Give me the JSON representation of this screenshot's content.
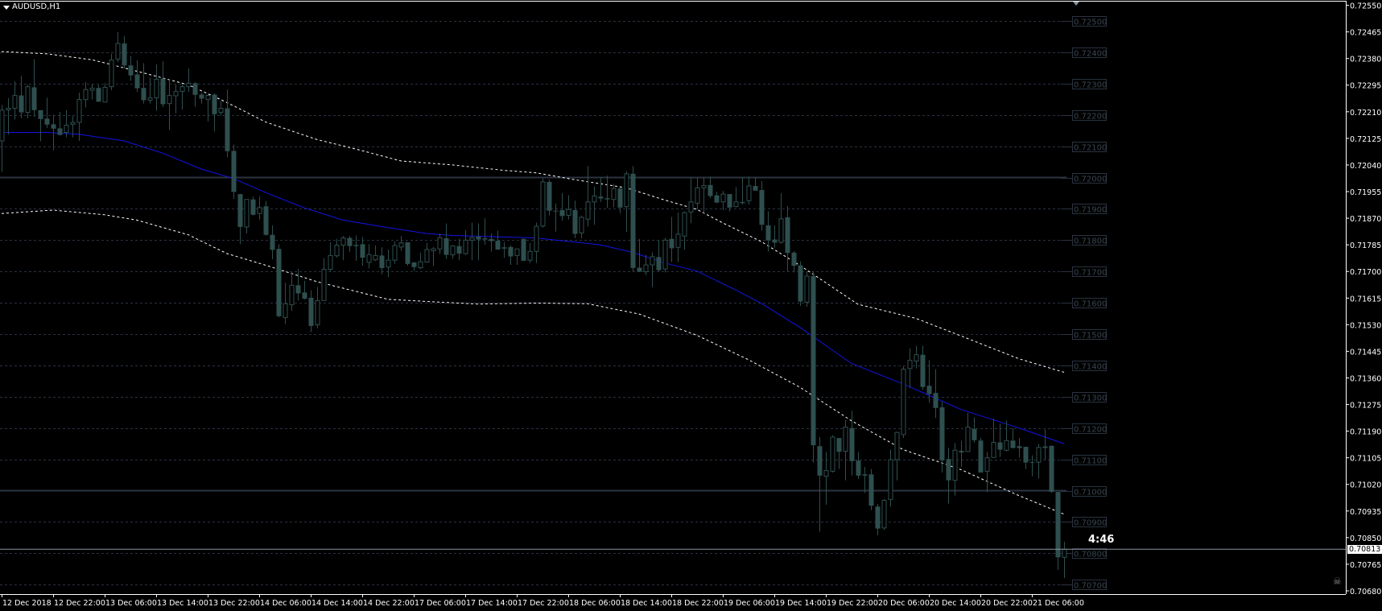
{
  "window": {
    "title": "AUDUSD,H1",
    "countdown": "4:46",
    "bid_label": "0.70813"
  },
  "icons": {
    "title_menu": "triangle-down-icon",
    "autoscroll": "triangle-down-icon",
    "skull": "skull-icon"
  },
  "colors": {
    "background": "#000000",
    "candle": "#2f4f4f",
    "moving_average": "#1414e6",
    "bands": "#ffffff",
    "grid": "#2a3340",
    "level_line": "#2a3440",
    "bid_line": "#8a94a0",
    "axis_text": "#ffffff",
    "level_label": "#3a4550"
  },
  "chart_data": {
    "type": "candlestick",
    "symbol": "AUDUSD",
    "timeframe": "H1",
    "ylim": [
      0.7068,
      0.7255
    ],
    "grid": true,
    "price_axis_labels": [
      "0.72550",
      "0.72465",
      "0.72380",
      "0.72295",
      "0.72210",
      "0.72125",
      "0.72040",
      "0.71955",
      "0.71870",
      "0.71785",
      "0.71700",
      "0.71615",
      "0.71530",
      "0.71445",
      "0.71360",
      "0.71275",
      "0.71190",
      "0.71105",
      "0.71020",
      "0.70935",
      "0.70850",
      "0.70765",
      "0.70680"
    ],
    "grid_level_labels": [
      "0.72500",
      "0.72400",
      "0.72300",
      "0.72200",
      "0.72100",
      "0.72000",
      "0.71900",
      "0.71800",
      "0.71700",
      "0.71600",
      "0.71500",
      "0.71400",
      "0.71300",
      "0.71200",
      "0.71100",
      "0.71000",
      "0.70900",
      "0.70800",
      "0.70700"
    ],
    "horizontal_levels": [
      0.72,
      0.71
    ],
    "bid": 0.70813,
    "time_axis_labels": [
      "12 Dec 2018",
      "12 Dec 22:00",
      "13 Dec 06:00",
      "13 Dec 14:00",
      "13 Dec 22:00",
      "14 Dec 06:00",
      "14 Dec 14:00",
      "14 Dec 22:00",
      "17 Dec 06:00",
      "17 Dec 14:00",
      "17 Dec 22:00",
      "18 Dec 06:00",
      "18 Dec 14:00",
      "18 Dec 22:00",
      "19 Dec 06:00",
      "19 Dec 14:00",
      "19 Dec 22:00",
      "20 Dec 06:00",
      "20 Dec 14:00",
      "20 Dec 22:00",
      "21 Dec 06:00"
    ],
    "bars_per_time_label": 8,
    "ohlc": [
      [
        0.72117,
        0.72232,
        0.72018,
        0.72215
      ],
      [
        0.72216,
        0.72254,
        0.72138,
        0.72221
      ],
      [
        0.72221,
        0.72307,
        0.72185,
        0.72262
      ],
      [
        0.72262,
        0.72325,
        0.72189,
        0.72208
      ],
      [
        0.72208,
        0.72296,
        0.72189,
        0.7229
      ],
      [
        0.72288,
        0.72378,
        0.72194,
        0.72215
      ],
      [
        0.72215,
        0.72215,
        0.72115,
        0.72187
      ],
      [
        0.72188,
        0.72255,
        0.72159,
        0.72169
      ],
      [
        0.7217,
        0.722,
        0.72087,
        0.72156
      ],
      [
        0.72157,
        0.72209,
        0.72134,
        0.72136
      ],
      [
        0.72144,
        0.72215,
        0.72129,
        0.72167
      ],
      [
        0.7217,
        0.72196,
        0.72128,
        0.72176
      ],
      [
        0.72176,
        0.72271,
        0.72117,
        0.72249
      ],
      [
        0.72249,
        0.72305,
        0.72224,
        0.72281
      ],
      [
        0.72279,
        0.72298,
        0.72249,
        0.72285
      ],
      [
        0.72286,
        0.72296,
        0.72242,
        0.72242
      ],
      [
        0.72241,
        0.72301,
        0.72241,
        0.72288
      ],
      [
        0.7229,
        0.72395,
        0.72279,
        0.72375
      ],
      [
        0.72378,
        0.72464,
        0.72369,
        0.72428
      ],
      [
        0.72428,
        0.72451,
        0.72348,
        0.72358
      ],
      [
        0.72358,
        0.72388,
        0.72309,
        0.72326
      ],
      [
        0.72329,
        0.72374,
        0.72273,
        0.72285
      ],
      [
        0.72286,
        0.72365,
        0.72236,
        0.72247
      ],
      [
        0.72247,
        0.72318,
        0.72236,
        0.72254
      ],
      [
        0.72254,
        0.72361,
        0.72213,
        0.72314
      ],
      [
        0.72316,
        0.72371,
        0.72225,
        0.72234
      ],
      [
        0.72236,
        0.72314,
        0.72151,
        0.72262
      ],
      [
        0.72261,
        0.72296,
        0.72205,
        0.72275
      ],
      [
        0.72275,
        0.72299,
        0.72217,
        0.7229
      ],
      [
        0.7229,
        0.72348,
        0.72273,
        0.72301
      ],
      [
        0.72301,
        0.72305,
        0.72226,
        0.72264
      ],
      [
        0.72265,
        0.72271,
        0.72236,
        0.72252
      ],
      [
        0.72249,
        0.72266,
        0.72179,
        0.72262
      ],
      [
        0.72265,
        0.72268,
        0.72147,
        0.72202
      ],
      [
        0.72208,
        0.72245,
        0.72198,
        0.72221
      ],
      [
        0.72221,
        0.72281,
        0.72065,
        0.72084
      ],
      [
        0.72085,
        0.72105,
        0.71932,
        0.71954
      ],
      [
        0.71947,
        0.71947,
        0.71787,
        0.71842
      ],
      [
        0.71842,
        0.7193,
        0.71821,
        0.7193
      ],
      [
        0.7193,
        0.71939,
        0.71879,
        0.71881
      ],
      [
        0.71885,
        0.71939,
        0.71866,
        0.71904
      ],
      [
        0.71908,
        0.71925,
        0.71814,
        0.71817
      ],
      [
        0.71817,
        0.71847,
        0.71739,
        0.71769
      ],
      [
        0.71772,
        0.71787,
        0.71554,
        0.71557
      ],
      [
        0.71553,
        0.71664,
        0.71532,
        0.71597
      ],
      [
        0.71594,
        0.71699,
        0.71574,
        0.71656
      ],
      [
        0.71656,
        0.71708,
        0.71607,
        0.7163
      ],
      [
        0.71633,
        0.7167,
        0.7161,
        0.71613
      ],
      [
        0.71616,
        0.7164,
        0.71506,
        0.71526
      ],
      [
        0.7153,
        0.7165,
        0.71519,
        0.71607
      ],
      [
        0.71607,
        0.71742,
        0.71607,
        0.71707
      ],
      [
        0.71707,
        0.71793,
        0.71699,
        0.71751
      ],
      [
        0.7175,
        0.71804,
        0.71744,
        0.71784
      ],
      [
        0.71784,
        0.71813,
        0.71736,
        0.71807
      ],
      [
        0.71807,
        0.71813,
        0.71763,
        0.71781
      ],
      [
        0.71785,
        0.71815,
        0.71734,
        0.71781
      ],
      [
        0.71787,
        0.7181,
        0.71718,
        0.71744
      ],
      [
        0.71729,
        0.71787,
        0.7171,
        0.71754
      ],
      [
        0.71737,
        0.71783,
        0.71733,
        0.71751
      ],
      [
        0.71751,
        0.71777,
        0.71691,
        0.71711
      ],
      [
        0.71714,
        0.7177,
        0.71682,
        0.71736
      ],
      [
        0.71736,
        0.71796,
        0.71724,
        0.71783
      ],
      [
        0.71778,
        0.71813,
        0.71766,
        0.71791
      ],
      [
        0.71793,
        0.71793,
        0.71718,
        0.71724
      ],
      [
        0.71729,
        0.7173,
        0.71701,
        0.71714
      ],
      [
        0.71712,
        0.7176,
        0.71707,
        0.71731
      ],
      [
        0.7173,
        0.71791,
        0.7173,
        0.7177
      ],
      [
        0.71766,
        0.71778,
        0.71717,
        0.71772
      ],
      [
        0.71772,
        0.71821,
        0.71755,
        0.71808
      ],
      [
        0.71806,
        0.71853,
        0.7174,
        0.71753
      ],
      [
        0.71753,
        0.71783,
        0.7174,
        0.71782
      ],
      [
        0.71781,
        0.71804,
        0.71736,
        0.71757
      ],
      [
        0.71757,
        0.71831,
        0.71753,
        0.718
      ],
      [
        0.718,
        0.71856,
        0.71736,
        0.71808
      ],
      [
        0.71811,
        0.71853,
        0.71736,
        0.71802
      ],
      [
        0.71806,
        0.7187,
        0.71785,
        0.71802
      ],
      [
        0.71804,
        0.71821,
        0.71763,
        0.71797
      ],
      [
        0.71798,
        0.7183,
        0.7177,
        0.7177
      ],
      [
        0.71777,
        0.71794,
        0.71744,
        0.71773
      ],
      [
        0.71778,
        0.71783,
        0.71721,
        0.71748
      ],
      [
        0.71751,
        0.71772,
        0.71721,
        0.71772
      ],
      [
        0.71804,
        0.71804,
        0.71734,
        0.71734
      ],
      [
        0.71736,
        0.71791,
        0.71727,
        0.71764
      ],
      [
        0.71764,
        0.71856,
        0.71727,
        0.71844
      ],
      [
        0.71845,
        0.71997,
        0.7184,
        0.71986
      ],
      [
        0.71986,
        0.71994,
        0.71879,
        0.71894
      ],
      [
        0.71894,
        0.71917,
        0.71827,
        0.71892
      ],
      [
        0.71896,
        0.7195,
        0.71862,
        0.71877
      ],
      [
        0.71879,
        0.71943,
        0.71866,
        0.71898
      ],
      [
        0.71896,
        0.71926,
        0.71806,
        0.7182
      ],
      [
        0.71823,
        0.71879,
        0.71806,
        0.71873
      ],
      [
        0.71867,
        0.72036,
        0.71843,
        0.71922
      ],
      [
        0.71922,
        0.71971,
        0.71849,
        0.71941
      ],
      [
        0.71939,
        0.72001,
        0.71922,
        0.71933
      ],
      [
        0.71934,
        0.72006,
        0.71903,
        0.7193
      ],
      [
        0.7193,
        0.7198,
        0.71905,
        0.71965
      ],
      [
        0.71965,
        0.71969,
        0.71886,
        0.71904
      ],
      [
        0.71907,
        0.7202,
        0.71826,
        0.72012
      ],
      [
        0.72012,
        0.72036,
        0.71699,
        0.71711
      ],
      [
        0.71712,
        0.71804,
        0.71699,
        0.71699
      ],
      [
        0.71699,
        0.71753,
        0.71688,
        0.71721
      ],
      [
        0.71721,
        0.71761,
        0.7165,
        0.71747
      ],
      [
        0.71746,
        0.718,
        0.71699,
        0.71704
      ],
      [
        0.71708,
        0.71808,
        0.71697,
        0.718
      ],
      [
        0.71804,
        0.71874,
        0.7173,
        0.71774
      ],
      [
        0.71777,
        0.71888,
        0.7173,
        0.71819
      ],
      [
        0.71813,
        0.71892,
        0.7177,
        0.71888
      ],
      [
        0.7189,
        0.72001,
        0.71854,
        0.71922
      ],
      [
        0.71918,
        0.72,
        0.719,
        0.71967
      ],
      [
        0.71967,
        0.72001,
        0.71886,
        0.71974
      ],
      [
        0.71976,
        0.72003,
        0.71934,
        0.71941
      ],
      [
        0.71943,
        0.71954,
        0.71918,
        0.7192
      ],
      [
        0.71922,
        0.71957,
        0.71896,
        0.71947
      ],
      [
        0.71947,
        0.71947,
        0.71892,
        0.71904
      ],
      [
        0.71907,
        0.71969,
        0.71905,
        0.71922
      ],
      [
        0.71922,
        0.72001,
        0.71914,
        0.71918
      ],
      [
        0.71926,
        0.72003,
        0.71914,
        0.71973
      ],
      [
        0.71973,
        0.72001,
        0.71958,
        0.71958
      ],
      [
        0.7196,
        0.71988,
        0.7183,
        0.71849
      ],
      [
        0.71847,
        0.71892,
        0.71764,
        0.71799
      ],
      [
        0.71802,
        0.71847,
        0.71776,
        0.71792
      ],
      [
        0.71793,
        0.7195,
        0.71789,
        0.71868
      ],
      [
        0.71873,
        0.71909,
        0.71701,
        0.71759
      ],
      [
        0.7176,
        0.71765,
        0.71697,
        0.71718
      ],
      [
        0.71719,
        0.71732,
        0.7159,
        0.71604
      ],
      [
        0.71602,
        0.717,
        0.71587,
        0.71685
      ],
      [
        0.71685,
        0.717,
        0.7109,
        0.71145
      ],
      [
        0.71142,
        0.71171,
        0.70869,
        0.71048
      ],
      [
        0.71046,
        0.71124,
        0.70955,
        0.71064
      ],
      [
        0.71062,
        0.71177,
        0.71058,
        0.71171
      ],
      [
        0.71168,
        0.71168,
        0.71069,
        0.71124
      ],
      [
        0.71126,
        0.71227,
        0.71033,
        0.71203
      ],
      [
        0.712,
        0.71255,
        0.71048,
        0.71094
      ],
      [
        0.71096,
        0.71124,
        0.71037,
        0.71048
      ],
      [
        0.71052,
        0.71076,
        0.70993,
        0.71048
      ],
      [
        0.71052,
        0.71069,
        0.70938,
        0.70952
      ],
      [
        0.70949,
        0.70957,
        0.70858,
        0.70879
      ],
      [
        0.70881,
        0.70973,
        0.70874,
        0.70969
      ],
      [
        0.70972,
        0.71131,
        0.70949,
        0.71099
      ],
      [
        0.71099,
        0.71188,
        0.71033,
        0.71186
      ],
      [
        0.71179,
        0.71397,
        0.71168,
        0.71388
      ],
      [
        0.7139,
        0.71454,
        0.71328,
        0.71416
      ],
      [
        0.71414,
        0.71462,
        0.7139,
        0.71434
      ],
      [
        0.71434,
        0.71462,
        0.71322,
        0.71331
      ],
      [
        0.71335,
        0.71417,
        0.71281,
        0.71308
      ],
      [
        0.71312,
        0.71388,
        0.71232,
        0.71264
      ],
      [
        0.71266,
        0.71284,
        0.71058,
        0.71097
      ],
      [
        0.71101,
        0.71137,
        0.70959,
        0.71033
      ],
      [
        0.71033,
        0.71152,
        0.70984,
        0.71129
      ],
      [
        0.71125,
        0.71159,
        0.71076,
        0.71126
      ],
      [
        0.71125,
        0.71248,
        0.71125,
        0.71203
      ],
      [
        0.71197,
        0.71234,
        0.71154,
        0.71161
      ],
      [
        0.7116,
        0.71169,
        0.71058,
        0.71058
      ],
      [
        0.71062,
        0.71124,
        0.70995,
        0.71105
      ],
      [
        0.71106,
        0.7123,
        0.71106,
        0.71154
      ],
      [
        0.71154,
        0.71214,
        0.71108,
        0.71131
      ],
      [
        0.71129,
        0.71224,
        0.71125,
        0.7116
      ],
      [
        0.7116,
        0.712,
        0.71136,
        0.71136
      ],
      [
        0.71142,
        0.71168,
        0.71105,
        0.71136
      ],
      [
        0.7114,
        0.7114,
        0.71069,
        0.7109
      ],
      [
        0.71091,
        0.71113,
        0.71046,
        0.7109
      ],
      [
        0.71091,
        0.71149,
        0.71039,
        0.71138
      ],
      [
        0.71138,
        0.71195,
        0.71099,
        0.7114
      ],
      [
        0.71143,
        0.71145,
        0.70993,
        0.70996
      ],
      [
        0.70996,
        0.70996,
        0.70747,
        0.70787
      ],
      [
        0.70787,
        0.70837,
        0.70721,
        0.70813
      ]
    ],
    "moving_average": [
      [
        0,
        0.72144
      ],
      [
        7,
        0.72144
      ],
      [
        12,
        0.72138
      ],
      [
        19,
        0.72117
      ],
      [
        25,
        0.72078
      ],
      [
        31,
        0.72027
      ],
      [
        36,
        0.71997
      ],
      [
        41,
        0.71952
      ],
      [
        47,
        0.71903
      ],
      [
        53,
        0.71864
      ],
      [
        60,
        0.7184
      ],
      [
        66,
        0.71821
      ],
      [
        70,
        0.71815
      ],
      [
        78,
        0.7181
      ],
      [
        83,
        0.71807
      ],
      [
        93,
        0.71785
      ],
      [
        98,
        0.71761
      ],
      [
        103,
        0.71727
      ],
      [
        108,
        0.71701
      ],
      [
        114,
        0.71641
      ],
      [
        118,
        0.71598
      ],
      [
        124,
        0.71521
      ],
      [
        132,
        0.71406
      ],
      [
        140,
        0.71341
      ],
      [
        149,
        0.71259
      ],
      [
        158,
        0.712
      ],
      [
        165,
        0.7115
      ]
    ],
    "upper_band": [
      [
        0,
        0.72402
      ],
      [
        7,
        0.72395
      ],
      [
        14,
        0.72376
      ],
      [
        17,
        0.72361
      ],
      [
        25,
        0.72318
      ],
      [
        29,
        0.72296
      ],
      [
        34,
        0.72249
      ],
      [
        37,
        0.72219
      ],
      [
        41,
        0.72177
      ],
      [
        49,
        0.72121
      ],
      [
        55,
        0.72091
      ],
      [
        62,
        0.72053
      ],
      [
        70,
        0.7204
      ],
      [
        78,
        0.72023
      ],
      [
        83,
        0.72015
      ],
      [
        89,
        0.71993
      ],
      [
        97,
        0.71967
      ],
      [
        103,
        0.71928
      ],
      [
        108,
        0.71898
      ],
      [
        112,
        0.71855
      ],
      [
        118,
        0.71795
      ],
      [
        124,
        0.71719
      ],
      [
        133,
        0.71595
      ],
      [
        142,
        0.7155
      ],
      [
        149,
        0.71494
      ],
      [
        158,
        0.71421
      ],
      [
        165,
        0.71378
      ]
    ],
    "lower_band": [
      [
        0,
        0.71885
      ],
      [
        8,
        0.71896
      ],
      [
        16,
        0.71881
      ],
      [
        21,
        0.71864
      ],
      [
        29,
        0.71817
      ],
      [
        35,
        0.71757
      ],
      [
        41,
        0.7172
      ],
      [
        49,
        0.71667
      ],
      [
        60,
        0.71611
      ],
      [
        66,
        0.71604
      ],
      [
        74,
        0.71596
      ],
      [
        83,
        0.71599
      ],
      [
        91,
        0.71597
      ],
      [
        99,
        0.71564
      ],
      [
        108,
        0.71496
      ],
      [
        116,
        0.71418
      ],
      [
        124,
        0.7133
      ],
      [
        132,
        0.71223
      ],
      [
        140,
        0.71131
      ],
      [
        149,
        0.71067
      ],
      [
        158,
        0.70984
      ],
      [
        165,
        0.70925
      ]
    ]
  }
}
